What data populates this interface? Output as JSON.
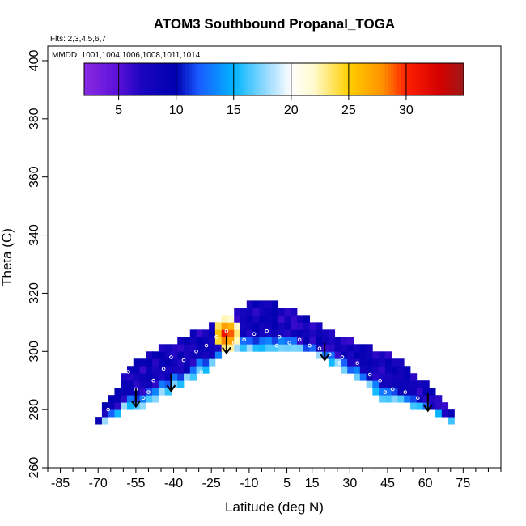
{
  "chart_data": {
    "type": "heatmap",
    "title": "ATOM3 Southbound Propanal_TOGA",
    "flights_label": "Flts: 2,3,4,5,6,7",
    "dates_label": "MMDD: 1001,1004,1006,1008,1011,1014",
    "xlabel": "Latitude (deg N)",
    "ylabel": "Theta (C)",
    "xlim": [
      -90,
      90
    ],
    "ylim": [
      260,
      405
    ],
    "x_ticks": [
      -85,
      -70,
      -55,
      -40,
      -25,
      -10,
      5,
      15,
      30,
      45,
      60,
      75
    ],
    "y_ticks": [
      260,
      280,
      300,
      320,
      340,
      360,
      380,
      400
    ],
    "colorbar": {
      "min": 2,
      "max": 35,
      "ticks": [
        5,
        10,
        15,
        20,
        25,
        30
      ],
      "stops": [
        {
          "v": 2,
          "c": "#8a2be2"
        },
        {
          "v": 5,
          "c": "#5a10d8"
        },
        {
          "v": 7,
          "c": "#1a05c0"
        },
        {
          "v": 10,
          "c": "#0000b0"
        },
        {
          "v": 12,
          "c": "#1a5cff"
        },
        {
          "v": 15,
          "c": "#00b4ff"
        },
        {
          "v": 18,
          "c": "#9fdcff"
        },
        {
          "v": 20,
          "c": "#ffffff"
        },
        {
          "v": 22,
          "c": "#fffacd"
        },
        {
          "v": 25,
          "c": "#ffd000"
        },
        {
          "v": 28,
          "c": "#ff9000"
        },
        {
          "v": 30,
          "c": "#ff2000"
        },
        {
          "v": 33,
          "c": "#d00000"
        },
        {
          "v": 35,
          "c": "#a01818"
        }
      ]
    },
    "field": {
      "x_step": 2.5,
      "y_step": 2.5,
      "upper_boundary": [
        [
          -71,
          276
        ],
        [
          -65,
          283
        ],
        [
          -60,
          290
        ],
        [
          -55,
          296
        ],
        [
          -50,
          298
        ],
        [
          -45,
          300
        ],
        [
          -40,
          302
        ],
        [
          -35,
          304
        ],
        [
          -30,
          306
        ],
        [
          -25,
          308
        ],
        [
          -20,
          310
        ],
        [
          -15,
          313
        ],
        [
          -10,
          315
        ],
        [
          -5,
          316
        ],
        [
          0,
          316
        ],
        [
          5,
          314
        ],
        [
          10,
          312
        ],
        [
          15,
          310
        ],
        [
          20,
          307
        ],
        [
          25,
          305
        ],
        [
          30,
          303
        ],
        [
          35,
          301
        ],
        [
          40,
          300
        ],
        [
          45,
          298
        ],
        [
          50,
          296
        ],
        [
          55,
          292
        ],
        [
          60,
          288
        ],
        [
          65,
          284
        ],
        [
          71,
          278
        ]
      ],
      "lower_boundary": [
        [
          -71,
          274
        ],
        [
          -65,
          277
        ],
        [
          -60,
          280
        ],
        [
          -55,
          281
        ],
        [
          -52,
          281
        ],
        [
          -50,
          282
        ],
        [
          -45,
          284
        ],
        [
          -40,
          287
        ],
        [
          -35,
          289
        ],
        [
          -30,
          292
        ],
        [
          -25,
          294
        ],
        [
          -20,
          299
        ],
        [
          -15,
          301
        ],
        [
          -10,
          301
        ],
        [
          -5,
          301
        ],
        [
          0,
          301
        ],
        [
          5,
          301
        ],
        [
          10,
          300
        ],
        [
          15,
          299
        ],
        [
          20,
          297
        ],
        [
          25,
          295
        ],
        [
          30,
          292
        ],
        [
          35,
          289
        ],
        [
          40,
          285
        ],
        [
          45,
          282
        ],
        [
          50,
          282
        ],
        [
          55,
          281
        ],
        [
          60,
          280
        ],
        [
          65,
          278
        ],
        [
          71,
          276
        ]
      ],
      "hotspot": {
        "x": -19,
        "y": 306,
        "peak": 33
      }
    },
    "arrows_x": [
      -55,
      -41,
      -19,
      20,
      61
    ],
    "sample_points": [
      [
        -58,
        293
      ],
      [
        -55,
        287
      ],
      [
        -52,
        284
      ],
      [
        -48,
        290
      ],
      [
        -44,
        294
      ],
      [
        -41,
        298
      ],
      [
        -36,
        297
      ],
      [
        -31,
        300
      ],
      [
        -27,
        302
      ],
      [
        -23,
        305
      ],
      [
        -19,
        307
      ],
      [
        -16,
        303
      ],
      [
        -12,
        304
      ],
      [
        -8,
        306
      ],
      [
        -3,
        307
      ],
      [
        2,
        305
      ],
      [
        6,
        303
      ],
      [
        10,
        304
      ],
      [
        14,
        302
      ],
      [
        18,
        301
      ],
      [
        22,
        299
      ],
      [
        27,
        298
      ],
      [
        33,
        296
      ],
      [
        38,
        292
      ],
      [
        42,
        290
      ],
      [
        47,
        287
      ],
      [
        52,
        286
      ],
      [
        57,
        284
      ],
      [
        -62,
        288
      ],
      [
        -66,
        280
      ],
      [
        -50,
        286
      ],
      [
        -29,
        293
      ],
      [
        1,
        302
      ],
      [
        26,
        296
      ],
      [
        44,
        286
      ]
    ]
  }
}
